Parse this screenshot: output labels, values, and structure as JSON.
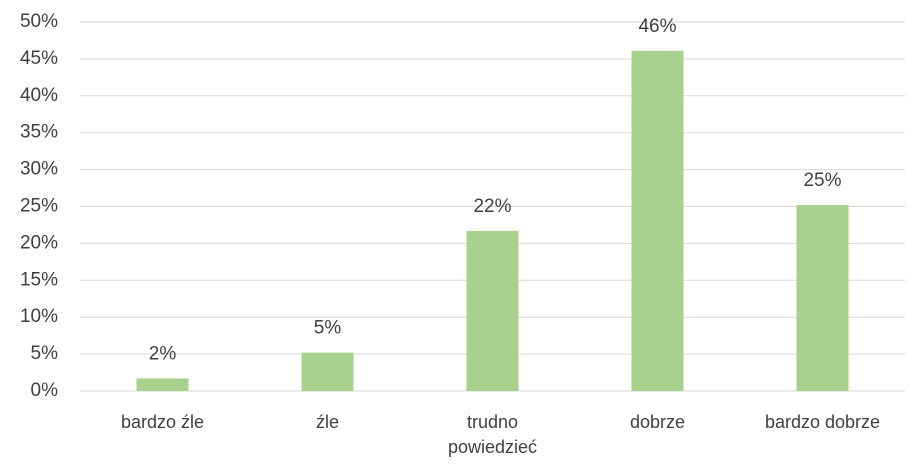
{
  "chart_data": {
    "type": "bar",
    "categories": [
      "bardzo źle",
      "źle",
      "trudno powiedzieć",
      "dobrze",
      "bardzo dobrze"
    ],
    "values": [
      1.7,
      5.2,
      21.7,
      46.1,
      25.2
    ],
    "value_labels": [
      "2%",
      "5%",
      "22%",
      "46%",
      "25%"
    ],
    "color": "#a9d18e",
    "ylim": [
      0,
      50
    ],
    "yticks": [
      {
        "value": 0,
        "label": "0%"
      },
      {
        "value": 5,
        "label": "5%"
      },
      {
        "value": 10,
        "label": "10%"
      },
      {
        "value": 15,
        "label": "15%"
      },
      {
        "value": 20,
        "label": "20%"
      },
      {
        "value": 25,
        "label": "25%"
      },
      {
        "value": 30,
        "label": "30%"
      },
      {
        "value": 35,
        "label": "35%"
      },
      {
        "value": 40,
        "label": "40%"
      },
      {
        "value": 45,
        "label": "45%"
      },
      {
        "value": 50,
        "label": "50%"
      }
    ],
    "grid": true
  }
}
